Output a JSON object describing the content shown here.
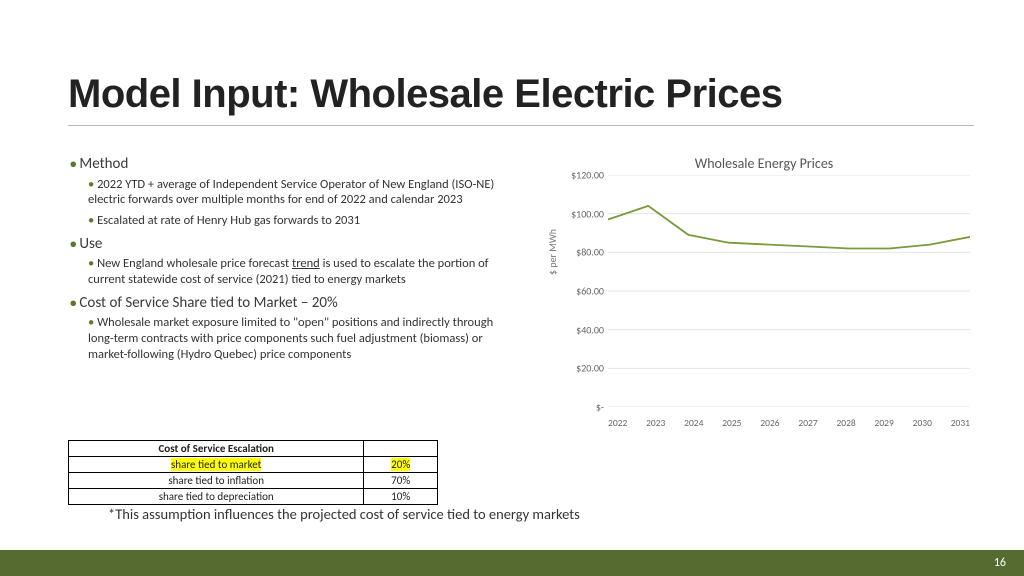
{
  "title": "Model Input: Wholesale Electric Prices",
  "page_number": "16",
  "bullets": {
    "method": {
      "head": "Method",
      "items": [
        "2022 YTD + average of Independent Service Operator of New England (ISO-NE) electric forwards over multiple months for end of 2022 and calendar 2023",
        "Escalated at rate of Henry Hub gas forwards to 2031"
      ]
    },
    "use": {
      "head": "Use",
      "item_pre": "New England wholesale price forecast ",
      "item_u": "trend",
      "item_post": " is used to escalate the portion of current statewide cost of service (2021) tied to energy markets"
    },
    "cost": {
      "head": "Cost of Service Share tied to Market – 20%",
      "item": "Wholesale market exposure limited to \"open\" positions and indirectly through long-term contracts with price components such fuel adjustment (biomass) or market-following (Hydro Quebec) price components"
    }
  },
  "table": {
    "header": "Cost of Service Escalation",
    "rows": [
      {
        "label": "share tied to market",
        "value": "20%",
        "highlight": true
      },
      {
        "label": "share tied to inflation",
        "value": "70%",
        "highlight": false
      },
      {
        "label": "share tied to depreciation",
        "value": "10%",
        "highlight": false
      }
    ]
  },
  "footnote": "*This assumption influences the projected cost of service tied to energy markets",
  "chart": {
    "type": "line",
    "title": "Wholesale Energy Prices",
    "ylabel": "$ per MWh",
    "ylim": [
      0,
      120
    ],
    "ytick_step": 20,
    "yticks_fmt": [
      "$-",
      "$20.00",
      "$40.00",
      "$60.00",
      "$80.00",
      "$100.00",
      "$120.00"
    ],
    "x_categories": [
      "2022",
      "2023",
      "2024",
      "2025",
      "2026",
      "2027",
      "2028",
      "2029",
      "2030",
      "2031"
    ],
    "values": [
      97,
      104,
      89,
      85,
      84,
      83,
      82,
      82,
      84,
      88
    ],
    "series_color": "#7a9a3b",
    "grid_color": "#e5e5e5",
    "background_color": "#ffffff",
    "title_fontsize": 14,
    "label_fontsize": 10
  },
  "accent_olive": "#556b2f"
}
